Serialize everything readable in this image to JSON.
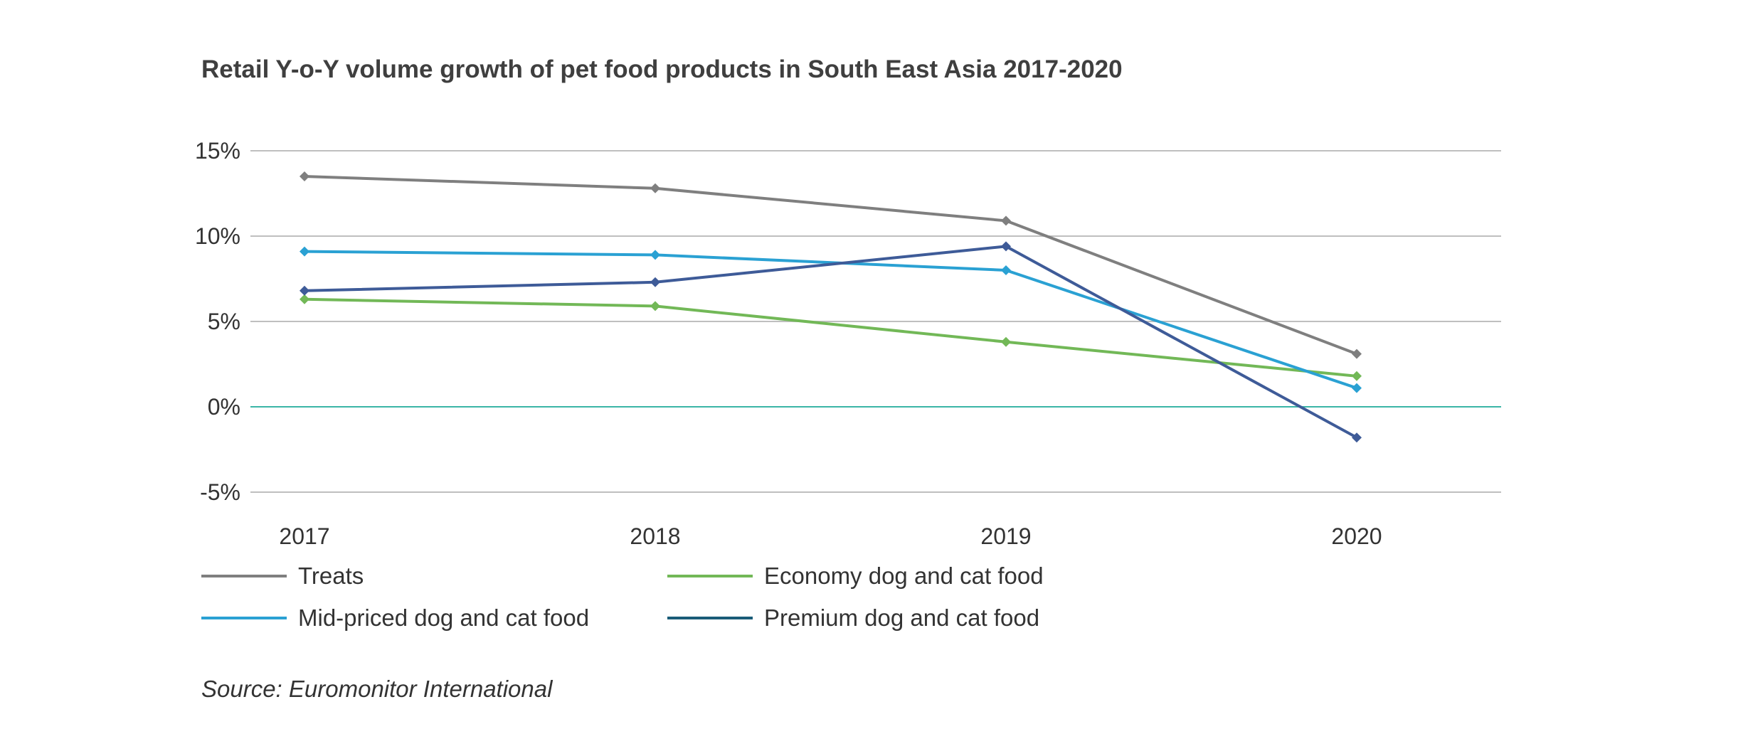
{
  "chart_data": {
    "type": "line",
    "title": "Retail Y-o-Y volume growth of pet food products in South East Asia 2017-2020",
    "xlabel": "",
    "ylabel": "",
    "categories": [
      "2017",
      "2018",
      "2019",
      "2020"
    ],
    "ylim": [
      -5,
      15
    ],
    "yticks": [
      15,
      10,
      5,
      0,
      -5
    ],
    "ytick_labels": [
      "15%",
      "10%",
      "5%",
      "0%",
      "-5%"
    ],
    "grid": true,
    "legend_position": "bottom",
    "series": [
      {
        "name": "Treats",
        "color": "#7f7f7f",
        "values": [
          13.5,
          12.8,
          10.9,
          3.1
        ]
      },
      {
        "name": "Economy dog and cat food",
        "color": "#72b857",
        "values": [
          6.3,
          5.9,
          3.8,
          1.8
        ]
      },
      {
        "name": "Mid-priced dog and cat food",
        "color": "#2aa1d3",
        "values": [
          9.1,
          8.9,
          8.0,
          1.1
        ]
      },
      {
        "name": "Premium dog and cat food",
        "color": "#3e5b98",
        "legend_color": "#1a5c78",
        "values": [
          6.8,
          7.3,
          9.4,
          -1.8
        ]
      }
    ],
    "zero_line_color": "#3ab5a6",
    "source": "Source: Euromonitor International"
  }
}
